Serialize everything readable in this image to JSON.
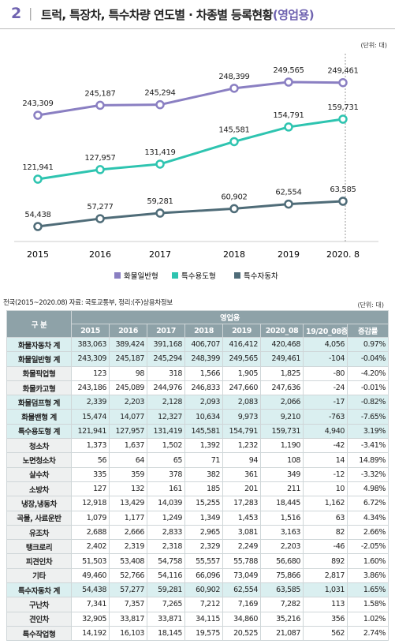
{
  "header": {
    "number": "2",
    "title": "트럭, 특장차, 특수차량 연도별 · 차종별 등록현황",
    "suffix": "(영업용)"
  },
  "chart_data": {
    "type": "line",
    "unit": "(단위: 대)",
    "categories": [
      "2015",
      "2016",
      "2017",
      "2018",
      "2019",
      "2020. 8"
    ],
    "series": [
      {
        "name": "화물일반형",
        "color": "#8a7fc2",
        "values": [
          243309,
          245187,
          245294,
          248399,
          249565,
          249461
        ],
        "value_labels": [
          "243,309",
          "245,187",
          "245,294",
          "248,399",
          "249,565",
          "249,461"
        ]
      },
      {
        "name": "특수용도형",
        "color": "#2ec4b0",
        "values": [
          121941,
          127957,
          131419,
          145581,
          154791,
          159731
        ],
        "value_labels": [
          "121,941",
          "127,957",
          "131,419",
          "145,581",
          "154,791",
          "159,731"
        ]
      },
      {
        "name": "특수자동차",
        "color": "#4f6c78",
        "values": [
          54438,
          57277,
          59281,
          60902,
          62554,
          63585
        ],
        "value_labels": [
          "54,438",
          "57,277",
          "59,281",
          "60,902",
          "62,554",
          "63,585"
        ]
      }
    ]
  },
  "table": {
    "source": "전국(2015~2020.08) 자료: 국토교통부, 정리:(주)상용차정보",
    "unit": "(단위: 대)",
    "corner": "구 분",
    "group": "영업용",
    "columns": [
      "2015",
      "2016",
      "2017",
      "2018",
      "2019",
      "2020_08",
      "19/20_08증감",
      "증감률"
    ],
    "rows": [
      [
        "화물자동차 계",
        "383,063",
        "389,424",
        "391,168",
        "406,707",
        "416,412",
        "420,468",
        "4,056",
        "0.97%"
      ],
      [
        "화물일반형 계",
        "243,309",
        "245,187",
        "245,294",
        "248,399",
        "249,565",
        "249,461",
        "-104",
        "-0.04%"
      ],
      [
        "화물픽업형",
        "123",
        "98",
        "318",
        "1,566",
        "1,905",
        "1,825",
        "-80",
        "-4.20%"
      ],
      [
        "화물카고형",
        "243,186",
        "245,089",
        "244,976",
        "246,833",
        "247,660",
        "247,636",
        "-24",
        "-0.01%"
      ],
      [
        "화물덤프형 계",
        "2,339",
        "2,203",
        "2,128",
        "2,093",
        "2,083",
        "2,066",
        "-17",
        "-0.82%"
      ],
      [
        "화물밴형 계",
        "15,474",
        "14,077",
        "12,327",
        "10,634",
        "9,973",
        "9,210",
        "-763",
        "-7.65%"
      ],
      [
        "특수용도형 계",
        "121,941",
        "127,957",
        "131,419",
        "145,581",
        "154,791",
        "159,731",
        "4,940",
        "3.19%"
      ],
      [
        "청소차",
        "1,373",
        "1,637",
        "1,502",
        "1,392",
        "1,232",
        "1,190",
        "-42",
        "-3.41%"
      ],
      [
        "노면청소차",
        "56",
        "64",
        "65",
        "71",
        "94",
        "108",
        "14",
        "14.89%"
      ],
      [
        "살수차",
        "335",
        "359",
        "378",
        "382",
        "361",
        "349",
        "-12",
        "-3.32%"
      ],
      [
        "소방차",
        "127",
        "132",
        "161",
        "185",
        "201",
        "211",
        "10",
        "4.98%"
      ],
      [
        "냉장,냉동차",
        "12,918",
        "13,429",
        "14,039",
        "15,255",
        "17,283",
        "18,445",
        "1,162",
        "6.72%"
      ],
      [
        "곡물, 사료운반",
        "1,079",
        "1,177",
        "1,249",
        "1,349",
        "1,453",
        "1,516",
        "63",
        "4.34%"
      ],
      [
        "유조차",
        "2,688",
        "2,666",
        "2,833",
        "2,965",
        "3,081",
        "3,163",
        "82",
        "2.66%"
      ],
      [
        "탱크로리",
        "2,402",
        "2,319",
        "2,318",
        "2,329",
        "2,249",
        "2,203",
        "-46",
        "-2.05%"
      ],
      [
        "피견인차",
        "51,503",
        "53,408",
        "54,758",
        "55,557",
        "55,788",
        "56,680",
        "892",
        "1.60%"
      ],
      [
        "기타",
        "49,460",
        "52,766",
        "54,116",
        "66,096",
        "73,049",
        "75,866",
        "2,817",
        "3.86%"
      ],
      [
        "특수자동차 계",
        "54,438",
        "57,277",
        "59,281",
        "60,902",
        "62,554",
        "63,585",
        "1,031",
        "1.65%"
      ],
      [
        "구난차",
        "7,341",
        "7,357",
        "7,265",
        "7,212",
        "7,169",
        "7,282",
        "113",
        "1.58%"
      ],
      [
        "견인차",
        "32,905",
        "33,817",
        "33,871",
        "34,115",
        "34,860",
        "35,216",
        "356",
        "1.02%"
      ],
      [
        "특수작업형",
        "14,192",
        "16,103",
        "18,145",
        "19,575",
        "20,525",
        "21,087",
        "562",
        "2.74%"
      ]
    ]
  }
}
